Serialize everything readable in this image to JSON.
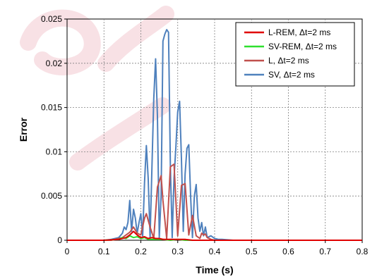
{
  "chart_data": {
    "type": "line",
    "title": "",
    "xlabel": "Time (s)",
    "ylabel": "Error",
    "xlim": [
      0,
      0.8
    ],
    "ylim": [
      0,
      0.025
    ],
    "xticks": [
      0,
      0.1,
      0.2,
      0.3,
      0.4,
      0.5,
      0.6,
      0.7,
      0.8
    ],
    "xtick_labels": [
      "0",
      "0.1",
      "0.2",
      "0.3",
      "0.4",
      "0.5",
      "0.6",
      "0.7",
      "0.8"
    ],
    "yticks": [
      0,
      0.005,
      0.01,
      0.015,
      0.02,
      0.025
    ],
    "ytick_labels": [
      "0",
      "0.005",
      "0.01",
      "0.015",
      "0.02",
      "0.025"
    ],
    "grid": true,
    "legend_position": "top-right",
    "series": [
      {
        "name": "L-REM, Δt=2 ms",
        "color": "#e00000",
        "x": [
          0,
          0.1,
          0.14,
          0.16,
          0.17,
          0.18,
          0.19,
          0.2,
          0.21,
          0.22,
          0.23,
          0.24,
          0.25,
          0.26,
          0.27,
          0.28,
          0.3,
          0.32,
          0.34,
          0.36,
          0.38,
          0.4,
          0.5,
          0.6,
          0.7,
          0.8
        ],
        "y": [
          0,
          0,
          0.0001,
          0.0003,
          0.0006,
          0.001,
          0.0006,
          0.0003,
          0.0004,
          0.0002,
          0.0003,
          0.0002,
          0.0002,
          0.0001,
          0.0001,
          0.0001,
          0.0001,
          0.0001,
          0,
          0,
          0,
          0,
          0,
          0,
          0,
          0
        ]
      },
      {
        "name": "SV-REM, Δt=2 ms",
        "color": "#2ee02e",
        "x": [
          0,
          0.1,
          0.14,
          0.15,
          0.16,
          0.17,
          0.18,
          0.19,
          0.2,
          0.21,
          0.22,
          0.24,
          0.26,
          0.28,
          0.3,
          0.32,
          0.34,
          0.36,
          0.38,
          0.4,
          0.5,
          0.6,
          0.7,
          0.8
        ],
        "y": [
          0,
          0,
          0.0001,
          0.0003,
          0.0002,
          0.0005,
          0.0003,
          0.0004,
          0.0002,
          0.0003,
          0.0001,
          0.0001,
          0.0001,
          0,
          0.0001,
          0,
          0,
          0,
          0,
          0,
          0,
          0,
          0,
          0
        ]
      },
      {
        "name": "L, Δt=2 ms",
        "color": "#c0504d",
        "x": [
          0,
          0.12,
          0.15,
          0.17,
          0.18,
          0.19,
          0.2,
          0.21,
          0.215,
          0.225,
          0.235,
          0.245,
          0.255,
          0.26,
          0.27,
          0.28,
          0.29,
          0.3,
          0.31,
          0.32,
          0.33,
          0.34,
          0.35,
          0.36,
          0.365,
          0.37,
          0.375,
          0.38,
          0.39,
          0.4,
          0.45,
          0.5,
          0.6,
          0.7,
          0.8
        ],
        "y": [
          0,
          0,
          0.0003,
          0.0009,
          0.0015,
          0.0008,
          0.0006,
          0.0025,
          0.003,
          0.0015,
          0.0002,
          0.006,
          0.0073,
          0.0045,
          0.0002,
          0.0083,
          0.0086,
          0.0005,
          0.0062,
          0.0064,
          0.0006,
          0.0028,
          0.0005,
          0.0002,
          0.0008,
          0.0006,
          0.0007,
          0.0003,
          0.0001,
          0,
          0,
          0,
          0,
          0,
          0
        ]
      },
      {
        "name": "SV, Δt=2 ms",
        "color": "#4f81bd",
        "x": [
          0,
          0.1,
          0.12,
          0.14,
          0.15,
          0.155,
          0.16,
          0.165,
          0.17,
          0.175,
          0.18,
          0.185,
          0.19,
          0.195,
          0.2,
          0.205,
          0.21,
          0.215,
          0.22,
          0.225,
          0.23,
          0.235,
          0.24,
          0.245,
          0.25,
          0.255,
          0.26,
          0.265,
          0.27,
          0.275,
          0.28,
          0.285,
          0.29,
          0.295,
          0.3,
          0.305,
          0.31,
          0.315,
          0.32,
          0.325,
          0.33,
          0.335,
          0.34,
          0.345,
          0.35,
          0.355,
          0.36,
          0.365,
          0.37,
          0.375,
          0.38,
          0.39,
          0.4,
          0.41,
          0.42,
          0.45,
          0.5,
          0.6,
          0.7,
          0.8
        ],
        "y": [
          0,
          0,
          0.0001,
          0.0003,
          0.0008,
          0.0015,
          0.0012,
          0.002,
          0.0045,
          0.001,
          0.0035,
          0.0025,
          0.0008,
          0.002,
          0.003,
          0.0005,
          0.0065,
          0.0107,
          0.007,
          0.0003,
          0.0082,
          0.016,
          0.0205,
          0.014,
          0.0003,
          0.005,
          0.0225,
          0.0233,
          0.0238,
          0.0235,
          0.0085,
          0.0003,
          0.007,
          0.0105,
          0.0145,
          0.0157,
          0.0092,
          0.001,
          0.0075,
          0.0104,
          0.0108,
          0.005,
          0.0003,
          0.005,
          0.0063,
          0.0025,
          0.001,
          0.002,
          0.0005,
          0.0015,
          0.0003,
          0.0005,
          0.0002,
          0.0001,
          0.0001,
          0,
          0,
          0,
          0,
          0
        ]
      }
    ]
  }
}
